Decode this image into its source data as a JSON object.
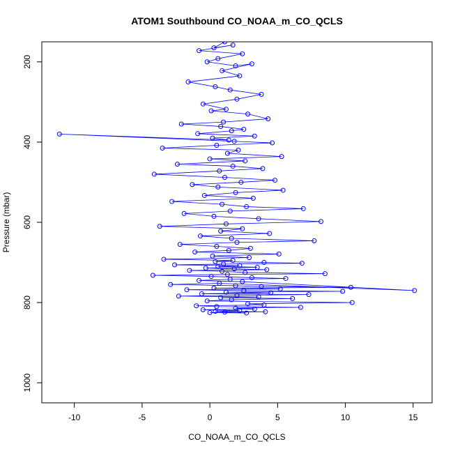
{
  "chart_data": {
    "type": "line",
    "title": "ATOM1 Southbound CO_NOAA_m_CO_QCLS",
    "xlabel": "CO_NOAA_m_CO_QCLS",
    "ylabel": "Pressure (mbar)",
    "xlim": [
      -12.4,
      16.4
    ],
    "ylim": [
      1050,
      150
    ],
    "y_reversed": true,
    "grid": false,
    "x_ticks": [
      -10,
      -5,
      0,
      5,
      10,
      15
    ],
    "x_tick_labels": [
      "-10",
      "-5",
      "0",
      "5",
      "10",
      "15"
    ],
    "y_ticks": [
      200,
      400,
      600,
      800,
      1000
    ],
    "y_tick_labels": [
      "200",
      "400",
      "600",
      "800",
      "1000"
    ],
    "series_color": "#0000ff",
    "marker": "open-circle",
    "series": [
      {
        "x": [
          1.1,
          0.3,
          1.7,
          -0.8,
          2.4,
          0.6,
          -0.2,
          1.9,
          3.1,
          0.9,
          2.2,
          -1.6,
          0.4,
          1.5,
          3.8,
          2.0,
          -0.5,
          1.2,
          0.1,
          2.8,
          4.3,
          1.0,
          -2.1,
          0.8,
          2.5,
          1.6,
          -0.9,
          3.3,
          0.2,
          1.4,
          -11.1,
          1.8,
          4.6,
          0.5,
          -3.5,
          2.1,
          1.3,
          5.3,
          0.0,
          2.6,
          -2.4,
          1.7,
          3.9,
          0.7,
          -4.1,
          1.1,
          4.8,
          2.3,
          -1.3,
          0.6,
          5.4,
          1.9,
          -0.4,
          3.2,
          -2.8,
          0.9,
          2.7,
          6.9,
          1.5,
          -1.9,
          0.3,
          3.6,
          8.2,
          1.2,
          -3.7,
          2.4,
          0.8,
          4.4,
          -0.7,
          1.6,
          7.7,
          2.0,
          -2.2,
          0.5,
          3.0,
          1.4,
          -1.1,
          5.1,
          0.2,
          2.9,
          -3.4,
          1.7,
          0.4,
          4.0,
          6.8,
          1.0,
          -2.6,
          2.2,
          0.6,
          3.5,
          -0.3,
          1.8,
          4.2,
          -1.5,
          0.9,
          2.6,
          8.5,
          1.3,
          -4.2,
          0.1,
          3.1,
          5.6,
          1.5,
          -0.8,
          2.4,
          15.1,
          0.7,
          -2.9,
          1.9,
          3.8,
          10.4,
          0.3,
          5.2,
          -1.7,
          2.5,
          9.8,
          1.2,
          4.5,
          -0.6,
          7.3,
          2.0,
          -2.3,
          3.6,
          0.8,
          6.1,
          1.6,
          -0.2,
          10.5,
          2.8,
          4.0,
          -1.0,
          0.5,
          6.7,
          1.9,
          3.3,
          -0.5,
          2.2,
          0.4,
          4.1,
          1.1,
          0.0,
          2.7
        ],
        "y": [
          150,
          165,
          158,
          172,
          180,
          192,
          200,
          210,
          205,
          222,
          235,
          250,
          262,
          270,
          281,
          293,
          305,
          318,
          322,
          330,
          342,
          350,
          355,
          361,
          368,
          372,
          379,
          385,
          390,
          395,
          380,
          398,
          402,
          408,
          415,
          420,
          428,
          436,
          442,
          447,
          455,
          460,
          466,
          472,
          480,
          488,
          495,
          500,
          506,
          512,
          520,
          526,
          533,
          540,
          548,
          555,
          561,
          566,
          572,
          578,
          585,
          591,
          598,
          604,
          610,
          616,
          622,
          628,
          634,
          640,
          646,
          650,
          655,
          660,
          665,
          670,
          674,
          679,
          684,
          688,
          692,
          695,
          698,
          700,
          702,
          704,
          706,
          708,
          710,
          712,
          714,
          716,
          718,
          720,
          722,
          725,
          728,
          730,
          732,
          735,
          738,
          740,
          742,
          745,
          748,
          770,
          752,
          755,
          758,
          760,
          762,
          764,
          766,
          768,
          770,
          772,
          774,
          776,
          778,
          780,
          782,
          784,
          786,
          788,
          790,
          793,
          796,
          800,
          803,
          806,
          808,
          810,
          812,
          814,
          816,
          818,
          820,
          822,
          823,
          824,
          825,
          826
        ]
      }
    ]
  }
}
